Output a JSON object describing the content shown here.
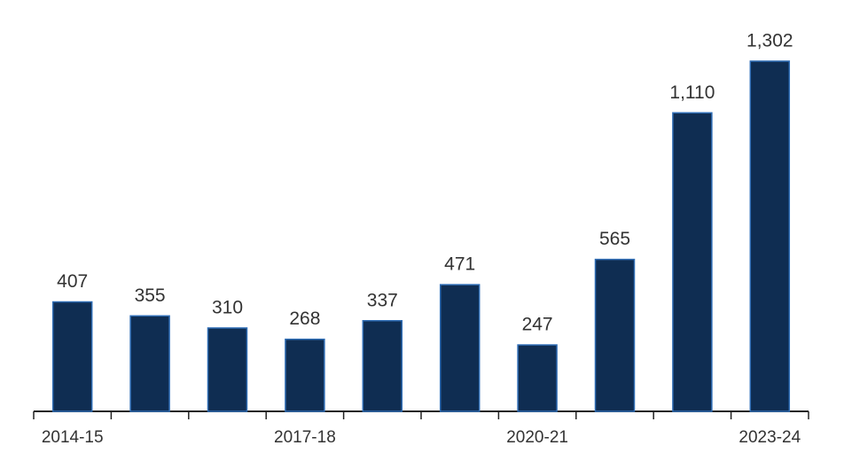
{
  "chart_data": {
    "type": "bar",
    "categories": [
      "2014-15",
      null,
      null,
      "2017-18",
      null,
      null,
      "2020-21",
      null,
      null,
      "2023-24"
    ],
    "values": [
      407,
      355,
      310,
      268,
      337,
      471,
      247,
      565,
      1110,
      1302
    ],
    "value_labels": [
      "407",
      "355",
      "310",
      "268",
      "337",
      "471",
      "247",
      "565",
      "1,110",
      "1,302"
    ],
    "color": "#0f2d52"
  }
}
